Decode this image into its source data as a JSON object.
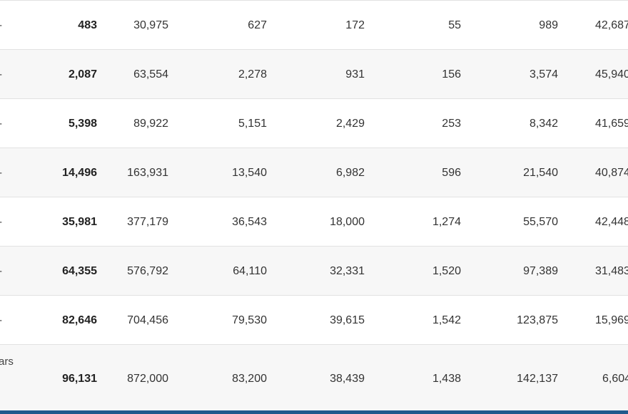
{
  "table": {
    "rows": [
      {
        "label": "-",
        "c1": "483",
        "c2": "30,975",
        "c3": "627",
        "c4": "172",
        "c5": "55",
        "c6": "989",
        "c7": "42,687"
      },
      {
        "label": "-",
        "c1": "2,087",
        "c2": "63,554",
        "c3": "2,278",
        "c4": "931",
        "c5": "156",
        "c6": "3,574",
        "c7": "45,940"
      },
      {
        "label": "-",
        "c1": "5,398",
        "c2": "89,922",
        "c3": "5,151",
        "c4": "2,429",
        "c5": "253",
        "c6": "8,342",
        "c7": "41,659"
      },
      {
        "label": "-",
        "c1": "14,496",
        "c2": "163,931",
        "c3": "13,540",
        "c4": "6,982",
        "c5": "596",
        "c6": "21,540",
        "c7": "40,874"
      },
      {
        "label": "-",
        "c1": "35,981",
        "c2": "377,179",
        "c3": "36,543",
        "c4": "18,000",
        "c5": "1,274",
        "c6": "55,570",
        "c7": "42,448"
      },
      {
        "label": "-",
        "c1": "64,355",
        "c2": "576,792",
        "c3": "64,110",
        "c4": "32,331",
        "c5": "1,520",
        "c6": "97,389",
        "c7": "31,483"
      },
      {
        "label": "-",
        "c1": "82,646",
        "c2": "704,456",
        "c3": "79,530",
        "c4": "39,615",
        "c5": "1,542",
        "c6": "123,875",
        "c7": "15,969"
      },
      {
        "label": "ars",
        "c1": "96,131",
        "c2": "872,000",
        "c3": "83,200",
        "c4": "38,439",
        "c5": "1,438",
        "c6": "142,137",
        "c7": "6,604"
      }
    ]
  }
}
